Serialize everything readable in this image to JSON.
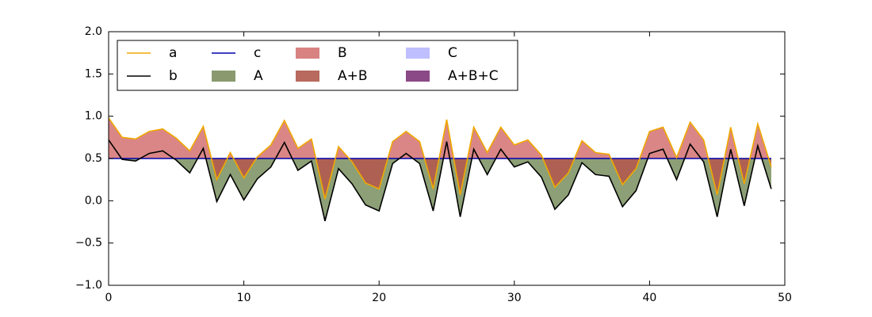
{
  "chart_data": {
    "type": "line",
    "x": [
      0,
      1,
      2,
      3,
      4,
      5,
      6,
      7,
      8,
      9,
      10,
      11,
      12,
      13,
      14,
      15,
      16,
      17,
      18,
      19,
      20,
      21,
      22,
      23,
      24,
      25,
      26,
      27,
      28,
      29,
      30,
      31,
      32,
      33,
      34,
      35,
      36,
      37,
      38,
      39,
      40,
      41,
      42,
      43,
      44,
      45,
      46,
      47,
      48,
      49
    ],
    "series": [
      {
        "name": "a",
        "color": "#f0a800",
        "values": [
          0.98,
          0.75,
          0.73,
          0.82,
          0.85,
          0.74,
          0.59,
          0.88,
          0.25,
          0.57,
          0.27,
          0.52,
          0.66,
          0.95,
          0.62,
          0.73,
          0.02,
          0.64,
          0.46,
          0.21,
          0.14,
          0.7,
          0.82,
          0.7,
          0.14,
          0.96,
          0.07,
          0.87,
          0.57,
          0.87,
          0.66,
          0.72,
          0.54,
          0.16,
          0.33,
          0.71,
          0.57,
          0.55,
          0.19,
          0.38,
          0.82,
          0.87,
          0.51,
          0.93,
          0.72,
          0.07,
          0.87,
          0.2,
          0.91,
          0.4
        ]
      },
      {
        "name": "b",
        "color": "#000000",
        "values": [
          0.72,
          0.49,
          0.47,
          0.56,
          0.59,
          0.48,
          0.33,
          0.62,
          -0.01,
          0.31,
          0.01,
          0.26,
          0.4,
          0.69,
          0.36,
          0.47,
          -0.24,
          0.38,
          0.2,
          -0.05,
          -0.12,
          0.44,
          0.56,
          0.44,
          -0.12,
          0.7,
          -0.19,
          0.61,
          0.31,
          0.61,
          0.4,
          0.46,
          0.28,
          -0.1,
          0.07,
          0.45,
          0.31,
          0.29,
          -0.07,
          0.12,
          0.56,
          0.61,
          0.25,
          0.67,
          0.46,
          -0.19,
          0.61,
          -0.06,
          0.65,
          0.14
        ]
      },
      {
        "name": "c",
        "color": "#0000aa",
        "values": [
          0.5,
          0.5,
          0.5,
          0.5,
          0.5,
          0.5,
          0.5,
          0.5,
          0.5,
          0.5,
          0.5,
          0.5,
          0.5,
          0.5,
          0.5,
          0.5,
          0.5,
          0.5,
          0.5,
          0.5,
          0.5,
          0.5,
          0.5,
          0.5,
          0.5,
          0.5,
          0.5,
          0.5,
          0.5,
          0.5,
          0.5,
          0.5,
          0.5,
          0.5,
          0.5,
          0.5,
          0.5,
          0.5,
          0.5,
          0.5,
          0.5,
          0.5,
          0.5,
          0.5,
          0.5,
          0.5,
          0.5,
          0.5,
          0.5,
          0.5
        ]
      }
    ],
    "fills": [
      {
        "name": "A",
        "color": "#8a9a6e"
      },
      {
        "name": "B",
        "color": "#d98282"
      },
      {
        "name": "A+B",
        "color": "#b86a5e"
      },
      {
        "name": "C",
        "color": "#bfbfff"
      },
      {
        "name": "A+B+C",
        "color": "#8b4a87"
      }
    ],
    "xlim": [
      0,
      50
    ],
    "xticks": [
      0,
      10,
      20,
      30,
      40,
      50
    ],
    "ylim": [
      -1.0,
      2.0
    ],
    "yticks": [
      {
        "value": -1.0,
        "label": "−1.0"
      },
      {
        "value": -0.5,
        "label": "−0.5"
      },
      {
        "value": 0.0,
        "label": "0.0"
      },
      {
        "value": 0.5,
        "label": "0.5"
      },
      {
        "value": 1.0,
        "label": "1.0"
      },
      {
        "value": 1.5,
        "label": "1.5"
      },
      {
        "value": 2.0,
        "label": "2.0"
      }
    ],
    "legend": "upper left"
  }
}
